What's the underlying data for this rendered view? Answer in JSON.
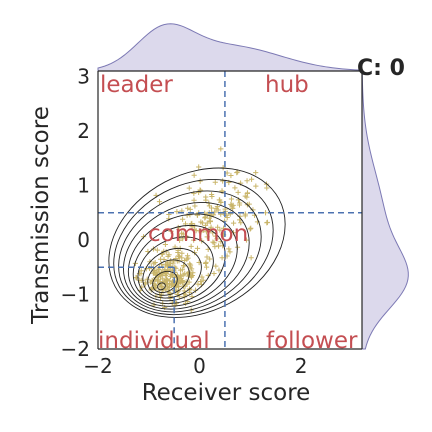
{
  "chart_data": {
    "type": "scatter",
    "corner_label": "C: 0",
    "xlabel": "Receiver score",
    "ylabel": "Transmission score",
    "xlim": [
      -2,
      3.2
    ],
    "ylim": [
      -2,
      3.1
    ],
    "xticks": [
      "−2",
      "0",
      "2"
    ],
    "yticks": [
      "−2",
      "−1",
      "0",
      "1",
      "2",
      "3"
    ],
    "xtick_values": [
      -2,
      0,
      2
    ],
    "ytick_values": [
      -2,
      -1,
      0,
      1,
      2,
      3
    ],
    "thresholds": {
      "x_low": -0.5,
      "x_high": 0.5,
      "y_low": -0.5,
      "y_high": 0.5
    },
    "region_labels": {
      "leader": "leader",
      "hub": "hub",
      "common": "common",
      "individual": "individual",
      "follower": "follower"
    },
    "marginals": "density (top: receiver score, right: transmission score)",
    "contours": "kernel density, centered near (-0.7, -0.8)",
    "colors": {
      "points": "#c9b56a",
      "contours": "#222222",
      "marginal_fill": "#dcd9ec",
      "marginal_line": "#7c79b4",
      "threshold_lines": "#4c72b0",
      "region_labels": "#c44e52"
    }
  }
}
